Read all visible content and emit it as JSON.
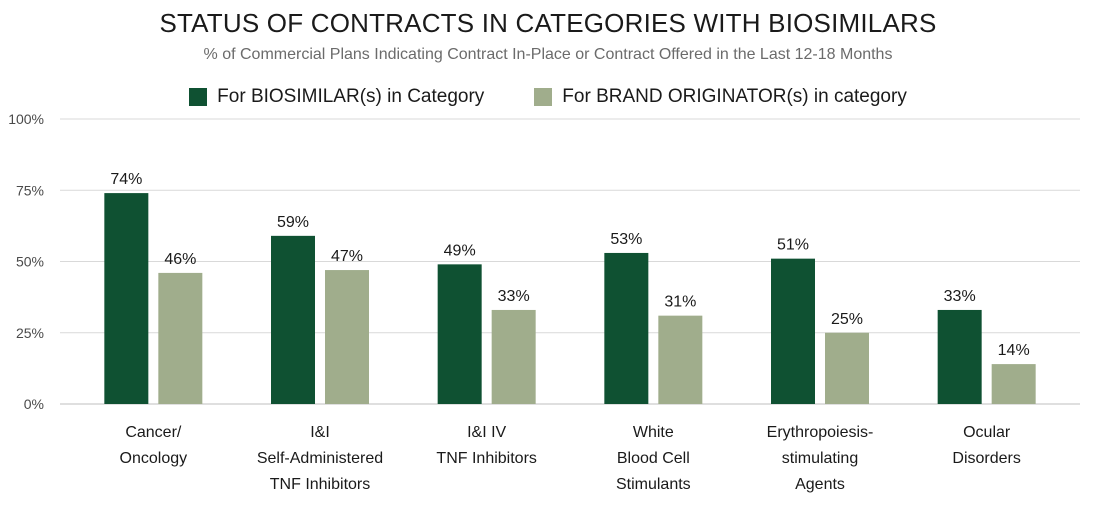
{
  "chart_data": {
    "type": "bar",
    "title": "STATUS OF CONTRACTS IN CATEGORIES WITH BIOSIMILARS",
    "subtitle": "% of Commercial Plans Indicating Contract In-Place or Contract Offered in the Last 12-18 Months",
    "categories": [
      [
        "Cancer/",
        "Oncology"
      ],
      [
        "I&I",
        "Self-Administered",
        "TNF Inhibitors"
      ],
      [
        "I&I IV",
        "TNF Inhibitors"
      ],
      [
        "White",
        "Blood Cell",
        "Stimulants"
      ],
      [
        "Erythropoiesis-",
        "stimulating",
        "Agents"
      ],
      [
        "Ocular",
        "Disorders"
      ]
    ],
    "series": [
      {
        "name": "For BIOSIMILAR(s) in Category",
        "values": [
          74,
          59,
          49,
          53,
          51,
          33
        ],
        "labels": [
          "74%",
          "59%",
          "49%",
          "53%",
          "51%",
          "33%"
        ],
        "color": "#0f5132"
      },
      {
        "name": "For BRAND ORIGINATOR(s) in category",
        "values": [
          46,
          47,
          33,
          31,
          25,
          14
        ],
        "labels": [
          "46%",
          "47%",
          "33%",
          "31%",
          "25%",
          "14%"
        ],
        "color": "#a0ad8c"
      }
    ],
    "ylim": [
      0,
      100
    ],
    "yticks": [
      0,
      25,
      50,
      75,
      100
    ],
    "ytick_labels": [
      "0%",
      "25%",
      "50%",
      "75%",
      "100%"
    ],
    "grid": true,
    "legend_position": "top-center"
  }
}
